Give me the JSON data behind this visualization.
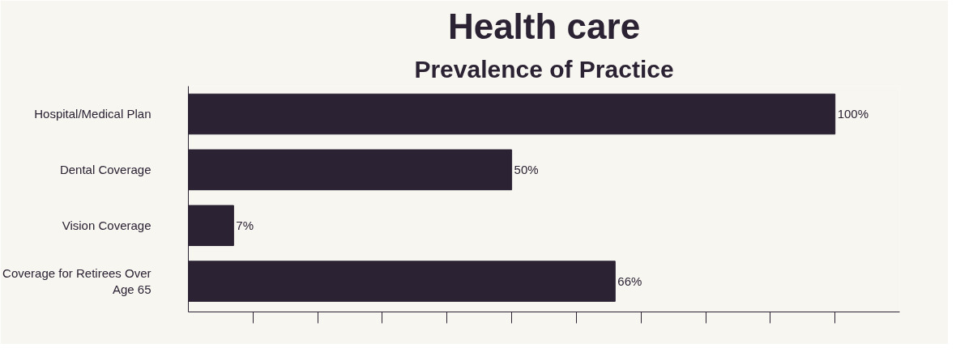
{
  "chart_data": {
    "type": "bar",
    "orientation": "horizontal",
    "title": "Health care",
    "subtitle": "Prevalence of Practice",
    "categories": [
      "Hospital/Medical Plan",
      "Dental Coverage",
      "Vision Coverage",
      "Coverage for Retirees Over Age 65"
    ],
    "values": [
      100,
      50,
      7,
      66
    ],
    "value_labels": [
      "100%",
      "50%",
      "7%",
      "66%"
    ],
    "color": "#2b2233",
    "xlim": [
      0,
      110
    ],
    "xticks": [
      {
        "value": 10,
        "label": null
      },
      {
        "value": 20,
        "label": null
      },
      {
        "value": 30,
        "label": null
      },
      {
        "value": 40,
        "label": null
      },
      {
        "value": 50,
        "label": null
      },
      {
        "value": 60,
        "label": null
      },
      {
        "value": 70,
        "label": null
      },
      {
        "value": 80,
        "label": null
      },
      {
        "value": 90,
        "label": null
      },
      {
        "value": 100,
        "label": null
      }
    ],
    "tick_labels": "y",
    "grid": false
  }
}
